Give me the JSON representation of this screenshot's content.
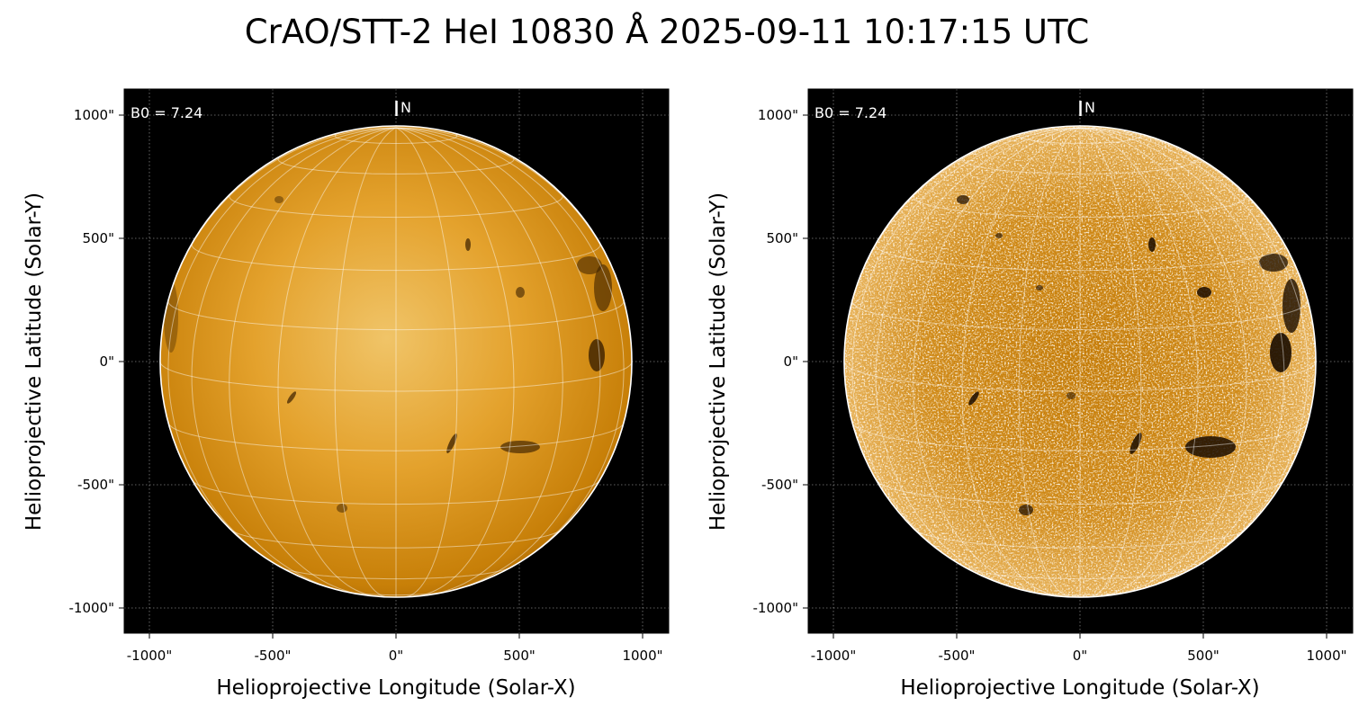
{
  "title": "CrAO/STT-2 HeI 10830 Å 2025-09-11 10:17:15 UTC",
  "colors": {
    "disk_base": "#d98a00",
    "disk_light": "#f2c56a",
    "background": "#000000",
    "grid": "#ffffff"
  },
  "panels": [
    {
      "name": "standard",
      "ylabel": "Helioprojective Latitude (Solar-Y)",
      "xlabel": "Helioprojective Longitude (Solar-X)",
      "b0_text": "B0 = 7.24",
      "north_text": "N",
      "x_ticks": [
        "-1000\"",
        "-500\"",
        "0\"",
        "500\"",
        "1000\""
      ],
      "y_ticks": [
        "1000\"",
        "500\"",
        "0\"",
        "-500\"",
        "-1000\""
      ]
    },
    {
      "name": "enhanced",
      "ylabel": "Helioprojective Latitude (Solar-Y)",
      "xlabel": "Helioprojective Longitude (Solar-X)",
      "b0_text": "B0 = 7.24",
      "north_text": "N",
      "x_ticks": [
        "-1000\"",
        "-500\"",
        "0\"",
        "500\"",
        "1000\""
      ],
      "y_ticks": [
        "1000\"",
        "500\"",
        "0\"",
        "-500\"",
        "-1000\""
      ]
    }
  ]
}
